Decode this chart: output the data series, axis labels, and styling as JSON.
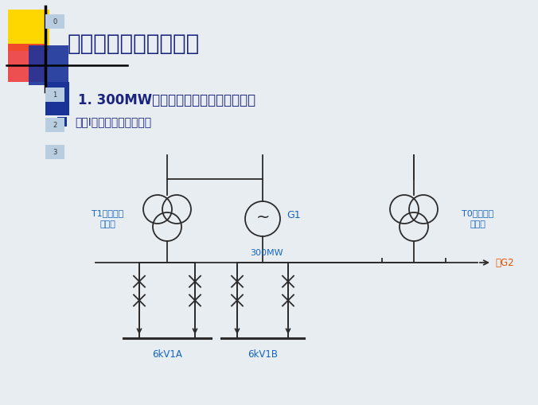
{
  "bg_color": "#e8edf2",
  "title1": "一、火电厂厂用电接线",
  "title2": "1. 300MW汽轮发电机组高压厂用电接线",
  "title3": "方案Ⅰ：不设公用负荷母线",
  "label_T1": "T1厂用高压\n变压器",
  "label_G1": "G1",
  "label_300MW": "300MW",
  "label_T0": "T0启动备用\n变压器",
  "label_6kV1A": "6kV1A",
  "label_6kV1B": "6kV1B",
  "label_G2": "去G2",
  "title1_color": "#1a237e",
  "title2_color": "#1a237e",
  "title3_color": "#1a237e",
  "diagram_color": "#2c2c2c",
  "label_color": "#1565c0",
  "accent_color": "#e65100",
  "yellow_color": "#FFD700",
  "red_color": "#ee3333",
  "blue_dark": "#1a3399",
  "blue_bullet": "#1a3399",
  "num_box_color": "#b8cde0"
}
